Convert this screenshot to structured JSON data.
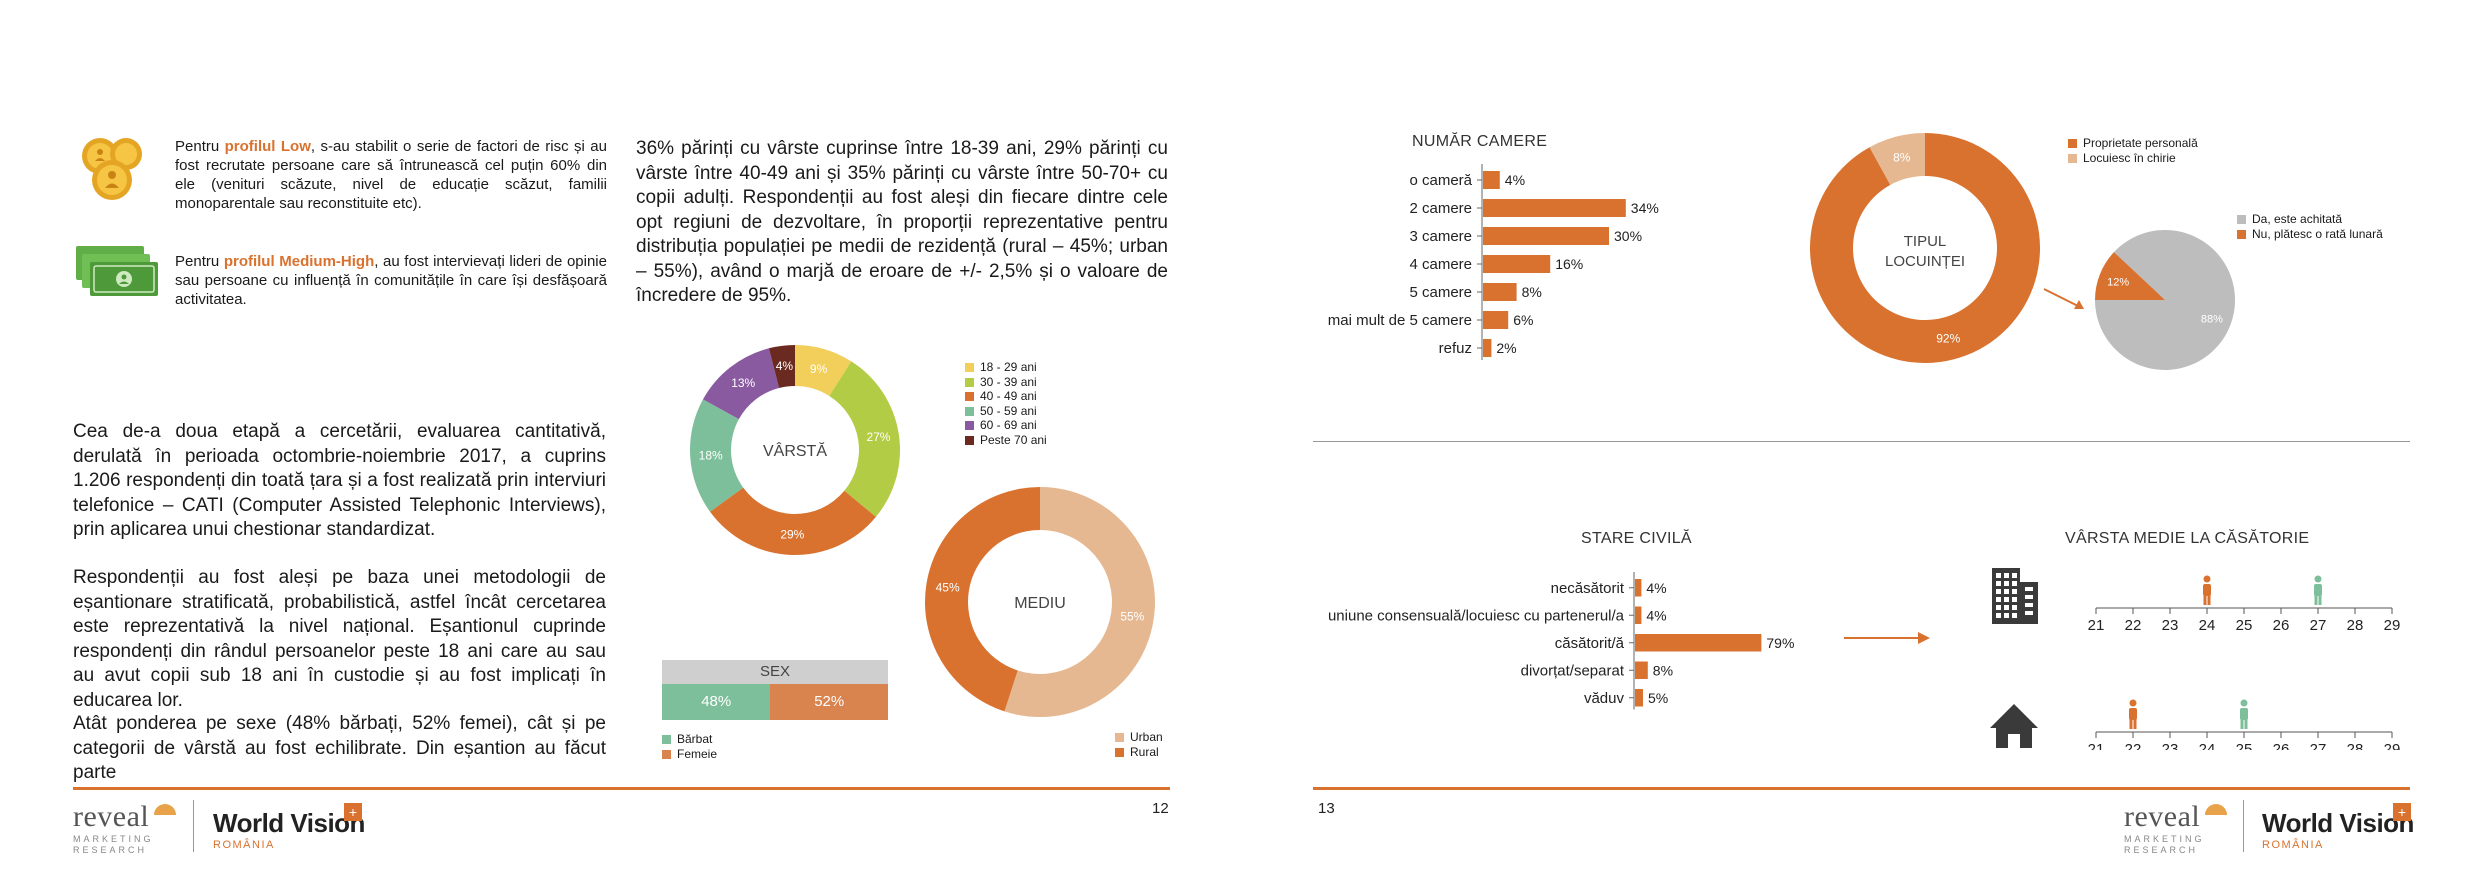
{
  "left_page": {
    "profile_low": {
      "prefix": "Pentru ",
      "highlight": "profilul Low",
      "text": ", s-au stabilit o serie de factori de risc și au fost recrutate persoane care să întrunească cel puțin 60% din ele (venituri scăzute, nivel de educație scăzut, familii monoparentale sau reconstituite etc)."
    },
    "profile_medium": {
      "prefix": "Pentru ",
      "highlight": "profilul Medium-High",
      "text": ", au fost intervievați lideri de opinie sau persoane cu influență în comunitățile în care își desfășoară activitatea."
    },
    "para1": "Cea de-a doua etapă a cercetării, evaluarea cantitativă, derulată în perioada octombrie-noiembrie 2017, a cuprins 1.206 respondenți din toată țara și a fost realizată prin interviuri telefonice – CATI (Computer Assisted Telephonic Interviews), prin aplicarea unui chestionar standardizat.",
    "para2": "Respondenții au fost aleși pe baza unei metodologii de eșantionare stratificată, probabilistică, astfel încât cercetarea este reprezentativă la nivel național. Eșantionul cuprinde respondenți din rândul persoanelor peste 18 ani care au sau au avut copii sub 18 ani în custodie și au fost implicați în educarea lor.",
    "para3": "Atât ponderea pe sexe (48% bărbați, 52% femei), cât și pe categorii de vârstă au fost echilibrate. Din eșantion au făcut parte",
    "para_right": "36% părinți cu vârste cuprinse între 18-39 ani, 29% părinți cu vârste între 40-49 ani și 35% părinți cu vârste între 50-70+ cu copii adulți. Respondenții au fost aleși din fiecare dintre cele opt regiuni de dezvoltare, în proporții reprezentative pentru distribuția populației pe medii de rezidență (rural – 45%; urban – 55%), având o marjă de eroare de +/- 2,5% și o valoare de încredere de 95%.",
    "page_number": "12"
  },
  "right_page": {
    "page_number": "13"
  },
  "logos": {
    "reveal": "reveal",
    "reveal_sub1": "MARKETING",
    "reveal_sub2": "RESEARCH",
    "world_vision": "World Vision",
    "world_vision_sub": "ROMÂNIA"
  },
  "chart_data": [
    {
      "id": "age",
      "type": "pie",
      "center_label": "VÂRSTĂ",
      "categories": [
        "18 - 29 ani",
        "30 - 39 ani",
        "40 - 49 ani",
        "50 - 59 ani",
        "60 - 69 ani",
        "Peste 70 ani"
      ],
      "values": [
        9,
        27,
        29,
        18,
        13,
        4
      ],
      "labels": [
        "9%",
        "27%",
        "29%",
        "18%",
        "13%",
        "4%"
      ],
      "colors": [
        "#f2cf5b",
        "#b2cc45",
        "#d9722f",
        "#7dbf9a",
        "#8a5aa0",
        "#6b2a1f"
      ],
      "legend": "right"
    },
    {
      "id": "sex",
      "type": "bar",
      "title": "SEX",
      "categories": [
        "Bărbat",
        "Femeie"
      ],
      "values": [
        48,
        52
      ],
      "labels": [
        "48%",
        "52%"
      ],
      "colors": [
        "#7dbf9a",
        "#d9844f"
      ],
      "legend": "bottom-left"
    },
    {
      "id": "residence",
      "type": "pie",
      "center_label": "MEDIU",
      "categories": [
        "Urban",
        "Rural"
      ],
      "values": [
        55,
        45
      ],
      "labels": [
        "55%",
        "45%"
      ],
      "colors": [
        "#e6b891",
        "#d9722f"
      ],
      "legend": "bottom-right"
    },
    {
      "id": "rooms",
      "type": "bar",
      "title": "NUMĂR CAMERE",
      "categories": [
        "o cameră",
        "2 camere",
        "3 camere",
        "4 camere",
        "5 camere",
        "mai mult de 5 camere",
        "refuz"
      ],
      "values": [
        4,
        34,
        30,
        16,
        8,
        6,
        2
      ],
      "labels": [
        "4%",
        "34%",
        "30%",
        "16%",
        "8%",
        "6%",
        "2%"
      ],
      "color": "#d9722f"
    },
    {
      "id": "housing",
      "type": "pie",
      "center_label_lines": [
        "TIPUL",
        "LOCUINȚEI"
      ],
      "categories": [
        "Proprietate personală",
        "Locuiesc în chirie"
      ],
      "values": [
        92,
        8
      ],
      "labels": [
        "92%",
        "8%"
      ],
      "colors": [
        "#d9722f",
        "#e6b891"
      ],
      "legend": "top-right"
    },
    {
      "id": "ownership",
      "type": "pie",
      "categories": [
        "Da, este achitată",
        "Nu, plătesc o rată lunară"
      ],
      "values": [
        88,
        12
      ],
      "labels": [
        "88%",
        "12%"
      ],
      "colors": [
        "#bdbdbd",
        "#d9722f"
      ],
      "legend": "top-right"
    },
    {
      "id": "civil",
      "type": "bar",
      "title": "STARE CIVILĂ",
      "categories": [
        "necăsătorit",
        "uniune consensuală/locuiesc cu partenerul/a",
        "căsătorit/ă",
        "divorțat/separat",
        "văduv"
      ],
      "values": [
        4,
        4,
        79,
        8,
        5
      ],
      "labels": [
        "4%",
        "4%",
        "79%",
        "8%",
        "5%"
      ],
      "color": "#d9722f"
    },
    {
      "id": "marriage_age",
      "type": "scatter",
      "title": "VÂRSTA MEDIE LA CĂSĂTORIE",
      "ticks": [
        "21",
        "22",
        "23",
        "24",
        "25",
        "26",
        "27",
        "28",
        "29"
      ],
      "xlim": [
        21,
        29
      ],
      "rows": [
        {
          "icon": "building-icon",
          "female": 24,
          "male": 27
        },
        {
          "icon": "house-icon",
          "female": 22,
          "male": 25
        }
      ],
      "female_color": "#d9722f",
      "male_color": "#7dbf9a"
    }
  ]
}
